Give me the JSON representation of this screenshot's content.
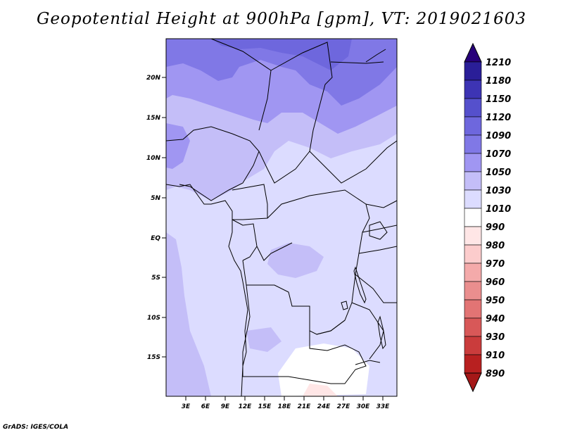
{
  "title": "Geopotential Height at 900hPa [gpm], VT: 2019021603",
  "footer": "GrADS: IGES/COLA",
  "map": {
    "lat_labels": [
      "20N",
      "15N",
      "10N",
      "5N",
      "EQ",
      "5S",
      "10S",
      "15S"
    ],
    "lon_labels": [
      "3E",
      "6E",
      "9E",
      "12E",
      "15E",
      "18E",
      "21E",
      "24E",
      "27E",
      "30E",
      "33E"
    ]
  },
  "colorbar": {
    "levels": [
      "1210",
      "1180",
      "1150",
      "1120",
      "1090",
      "1070",
      "1050",
      "1030",
      "1010",
      "990",
      "980",
      "970",
      "960",
      "950",
      "940",
      "930",
      "910",
      "890"
    ],
    "colors": [
      "#27007a",
      "#2a1e98",
      "#3d34b4",
      "#5550cc",
      "#6e67dd",
      "#8078e6",
      "#a096f2",
      "#c4bef8",
      "#dcdcff",
      "#ffffff",
      "#ffe6e6",
      "#fccccc",
      "#f4aaaa",
      "#ea8e8e",
      "#e27474",
      "#d85858",
      "#ca3c3c",
      "#b82020",
      "#a51818"
    ]
  }
}
